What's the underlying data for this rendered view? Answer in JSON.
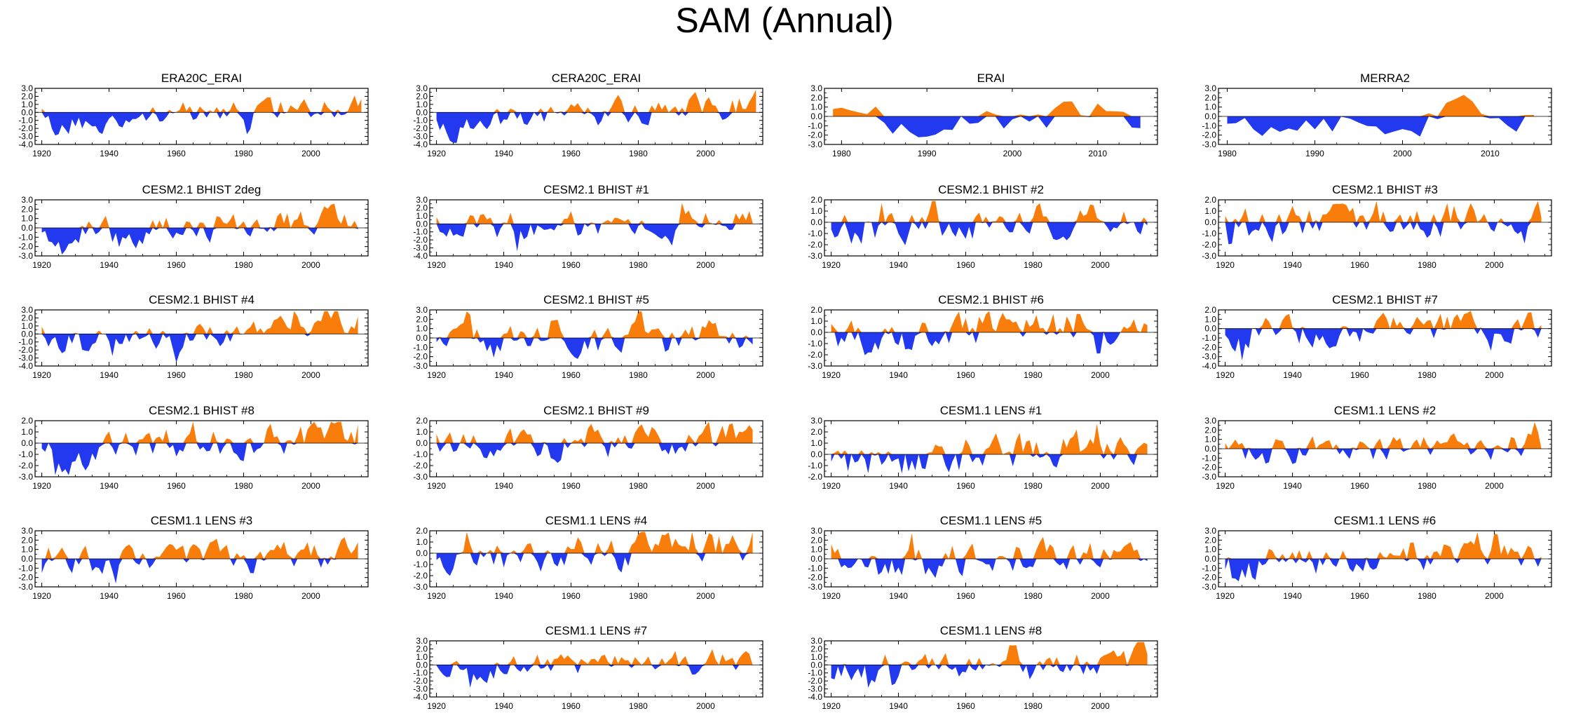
{
  "title": "SAM (Annual)",
  "colors": {
    "positive": "#f97d0b",
    "negative": "#2239f0",
    "axis": "#000000",
    "zero_line": "#000000"
  },
  "chart_data": [
    {
      "type": "area",
      "title": "ERA20C_ERAI",
      "x_start": 1920,
      "x_end": 2015,
      "xlim": [
        1918,
        2017
      ],
      "xticks": [
        1920,
        1940,
        1960,
        1980,
        2000
      ],
      "ylim": [
        -4,
        3
      ],
      "yticks": [
        3,
        2,
        1,
        0,
        -1,
        -2,
        -3,
        -4
      ],
      "seed": 11,
      "trend": 1.0,
      "amp": 1.1,
      "bias": 0.0
    },
    {
      "type": "area",
      "title": "CERA20C_ERAI",
      "x_start": 1920,
      "x_end": 2015,
      "xlim": [
        1918,
        2017
      ],
      "xticks": [
        1920,
        1940,
        1960,
        1980,
        2000
      ],
      "ylim": [
        -4,
        3
      ],
      "yticks": [
        3,
        2,
        1,
        0,
        -1,
        -2,
        -3,
        -4
      ],
      "seed": 12,
      "trend": 0.9,
      "amp": 1.2,
      "bias": 0.0
    },
    {
      "type": "area",
      "title": "ERAI",
      "x_start": 1979,
      "x_end": 2015,
      "xlim": [
        1978,
        2017
      ],
      "xticks": [
        1980,
        1990,
        2000,
        2010
      ],
      "ylim": [
        -3,
        3
      ],
      "yticks": [
        3,
        2,
        1,
        0,
        -1,
        -2,
        -3
      ],
      "seed": 13,
      "trend": 0.3,
      "amp": 1.2,
      "bias": 0.0
    },
    {
      "type": "area",
      "title": "MERRA2",
      "x_start": 1980,
      "x_end": 2015,
      "xlim": [
        1979,
        2017
      ],
      "xticks": [
        1980,
        1990,
        2000,
        2010
      ],
      "ylim": [
        -3,
        3
      ],
      "yticks": [
        3,
        2,
        1,
        0,
        -1,
        -2,
        -3
      ],
      "seed": 14,
      "trend": 0.3,
      "amp": 1.2,
      "bias": 0.0
    },
    {
      "type": "area",
      "title": "CESM2.1 BHIST 2deg",
      "x_start": 1920,
      "x_end": 2014,
      "xlim": [
        1918,
        2017
      ],
      "xticks": [
        1920,
        1940,
        1960,
        1980,
        2000
      ],
      "ylim": [
        -3,
        3
      ],
      "yticks": [
        3,
        2,
        1,
        0,
        -1,
        -2,
        -3
      ],
      "seed": 21,
      "trend": 0.6,
      "amp": 1.1,
      "bias": 0.0
    },
    {
      "type": "area",
      "title": "CESM2.1 BHIST #1",
      "x_start": 1920,
      "x_end": 2014,
      "xlim": [
        1918,
        2017
      ],
      "xticks": [
        1920,
        1940,
        1960,
        1980,
        2000
      ],
      "ylim": [
        -4,
        3
      ],
      "yticks": [
        3,
        2,
        1,
        0,
        -1,
        -2,
        -3,
        -4
      ],
      "seed": 22,
      "trend": 0.5,
      "amp": 1.2,
      "bias": 0.0
    },
    {
      "type": "area",
      "title": "CESM2.1 BHIST #2",
      "x_start": 1920,
      "x_end": 2014,
      "xlim": [
        1918,
        2017
      ],
      "xticks": [
        1920,
        1940,
        1960,
        1980,
        2000
      ],
      "ylim": [
        -3,
        2
      ],
      "yticks": [
        2,
        1,
        0,
        -1,
        -2,
        -3
      ],
      "seed": 23,
      "trend": 0.4,
      "amp": 1.1,
      "bias": 0.0
    },
    {
      "type": "area",
      "title": "CESM2.1 BHIST #3",
      "x_start": 1920,
      "x_end": 2014,
      "xlim": [
        1918,
        2017
      ],
      "xticks": [
        1920,
        1940,
        1960,
        1980,
        2000
      ],
      "ylim": [
        -3,
        2
      ],
      "yticks": [
        2,
        1,
        0,
        -1,
        -2,
        -3
      ],
      "seed": 24,
      "trend": 0.4,
      "amp": 1.1,
      "bias": 0.0
    },
    {
      "type": "area",
      "title": "CESM2.1 BHIST #4",
      "x_start": 1920,
      "x_end": 2014,
      "xlim": [
        1918,
        2017
      ],
      "xticks": [
        1920,
        1940,
        1960,
        1980,
        2000
      ],
      "ylim": [
        -4,
        3
      ],
      "yticks": [
        3,
        2,
        1,
        0,
        -1,
        -2,
        -3,
        -4
      ],
      "seed": 31,
      "trend": 0.5,
      "amp": 1.1,
      "bias": 0.0
    },
    {
      "type": "area",
      "title": "CESM2.1 BHIST #5",
      "x_start": 1920,
      "x_end": 2014,
      "xlim": [
        1918,
        2017
      ],
      "xticks": [
        1920,
        1940,
        1960,
        1980,
        2000
      ],
      "ylim": [
        -3,
        3
      ],
      "yticks": [
        3,
        2,
        1,
        0,
        -1,
        -2,
        -3
      ],
      "seed": 32,
      "trend": 0.4,
      "amp": 1.1,
      "bias": 0.0
    },
    {
      "type": "area",
      "title": "CESM2.1 BHIST #6",
      "x_start": 1920,
      "x_end": 2014,
      "xlim": [
        1918,
        2017
      ],
      "xticks": [
        1920,
        1940,
        1960,
        1980,
        2000
      ],
      "ylim": [
        -3,
        2
      ],
      "yticks": [
        2,
        1,
        0,
        -1,
        -2,
        -3
      ],
      "seed": 33,
      "trend": 0.4,
      "amp": 1.1,
      "bias": 0.0
    },
    {
      "type": "area",
      "title": "CESM2.1 BHIST #7",
      "x_start": 1920,
      "x_end": 2014,
      "xlim": [
        1918,
        2017
      ],
      "xticks": [
        1920,
        1940,
        1960,
        1980,
        2000
      ],
      "ylim": [
        -4,
        2
      ],
      "yticks": [
        2,
        1,
        0,
        -1,
        -2,
        -3,
        -4
      ],
      "seed": 34,
      "trend": 0.4,
      "amp": 1.1,
      "bias": 0.0
    },
    {
      "type": "area",
      "title": "CESM2.1 BHIST #8",
      "x_start": 1920,
      "x_end": 2014,
      "xlim": [
        1918,
        2017
      ],
      "xticks": [
        1920,
        1940,
        1960,
        1980,
        2000
      ],
      "ylim": [
        -3,
        2
      ],
      "yticks": [
        2,
        1,
        0,
        -1,
        -2,
        -3
      ],
      "seed": 41,
      "trend": 0.7,
      "amp": 1.1,
      "bias": 0.0
    },
    {
      "type": "area",
      "title": "CESM2.1 BHIST #9",
      "x_start": 1920,
      "x_end": 2014,
      "xlim": [
        1918,
        2017
      ],
      "xticks": [
        1920,
        1940,
        1960,
        1980,
        2000
      ],
      "ylim": [
        -3,
        2
      ],
      "yticks": [
        2,
        1,
        0,
        -1,
        -2,
        -3
      ],
      "seed": 42,
      "trend": 0.4,
      "amp": 1.0,
      "bias": 0.0
    },
    {
      "type": "area",
      "title": "CESM1.1 LENS #1",
      "x_start": 1920,
      "x_end": 2014,
      "xlim": [
        1918,
        2017
      ],
      "xticks": [
        1920,
        1940,
        1960,
        1980,
        2000
      ],
      "ylim": [
        -2,
        3
      ],
      "yticks": [
        3,
        2,
        1,
        0,
        -1,
        -2
      ],
      "seed": 43,
      "trend": 0.6,
      "amp": 1.1,
      "bias": 0.0
    },
    {
      "type": "area",
      "title": "CESM1.1 LENS #2",
      "x_start": 1920,
      "x_end": 2014,
      "xlim": [
        1918,
        2017
      ],
      "xticks": [
        1920,
        1940,
        1960,
        1980,
        2000
      ],
      "ylim": [
        -3,
        3
      ],
      "yticks": [
        3,
        2,
        1,
        0,
        -1,
        -2,
        -3
      ],
      "seed": 44,
      "trend": 0.4,
      "amp": 1.0,
      "bias": 0.0
    },
    {
      "type": "area",
      "title": "CESM1.1 LENS #3",
      "x_start": 1920,
      "x_end": 2014,
      "xlim": [
        1918,
        2017
      ],
      "xticks": [
        1920,
        1940,
        1960,
        1980,
        2000
      ],
      "ylim": [
        -3,
        3
      ],
      "yticks": [
        3,
        2,
        1,
        0,
        -1,
        -2,
        -3
      ],
      "seed": 51,
      "trend": 0.4,
      "amp": 1.1,
      "bias": 0.0
    },
    {
      "type": "area",
      "title": "CESM1.1 LENS #4",
      "x_start": 1920,
      "x_end": 2014,
      "xlim": [
        1918,
        2017
      ],
      "xticks": [
        1920,
        1940,
        1960,
        1980,
        2000
      ],
      "ylim": [
        -3,
        2
      ],
      "yticks": [
        2,
        1,
        0,
        -1,
        -2,
        -3
      ],
      "seed": 52,
      "trend": 0.4,
      "amp": 1.1,
      "bias": 0.0
    },
    {
      "type": "area",
      "title": "CESM1.1 LENS #5",
      "x_start": 1920,
      "x_end": 2014,
      "xlim": [
        1918,
        2017
      ],
      "xticks": [
        1920,
        1940,
        1960,
        1980,
        2000
      ],
      "ylim": [
        -3,
        3
      ],
      "yticks": [
        3,
        2,
        1,
        0,
        -1,
        -2,
        -3
      ],
      "seed": 53,
      "trend": 0.4,
      "amp": 1.1,
      "bias": 0.0
    },
    {
      "type": "area",
      "title": "CESM1.1 LENS #6",
      "x_start": 1920,
      "x_end": 2014,
      "xlim": [
        1918,
        2017
      ],
      "xticks": [
        1920,
        1940,
        1960,
        1980,
        2000
      ],
      "ylim": [
        -3,
        3
      ],
      "yticks": [
        3,
        2,
        1,
        0,
        -1,
        -2,
        -3
      ],
      "seed": 54,
      "trend": 0.5,
      "amp": 1.0,
      "bias": 0.0
    },
    {
      "type": "area",
      "title": "CESM1.1 LENS #7",
      "x_start": 1920,
      "x_end": 2014,
      "xlim": [
        1918,
        2017
      ],
      "xticks": [
        1920,
        1940,
        1960,
        1980,
        2000
      ],
      "ylim": [
        -4,
        3
      ],
      "yticks": [
        3,
        2,
        1,
        0,
        -1,
        -2,
        -3,
        -4
      ],
      "seed": 61,
      "trend": 0.3,
      "amp": 1.1,
      "bias": 0.0
    },
    {
      "type": "area",
      "title": "CESM1.1 LENS #8",
      "x_start": 1920,
      "x_end": 2014,
      "xlim": [
        1918,
        2017
      ],
      "xticks": [
        1920,
        1940,
        1960,
        1980,
        2000
      ],
      "ylim": [
        -4,
        3
      ],
      "yticks": [
        3,
        2,
        1,
        0,
        -1,
        -2,
        -3,
        -4
      ],
      "seed": 62,
      "trend": 0.5,
      "amp": 1.1,
      "bias": 0.0
    }
  ]
}
